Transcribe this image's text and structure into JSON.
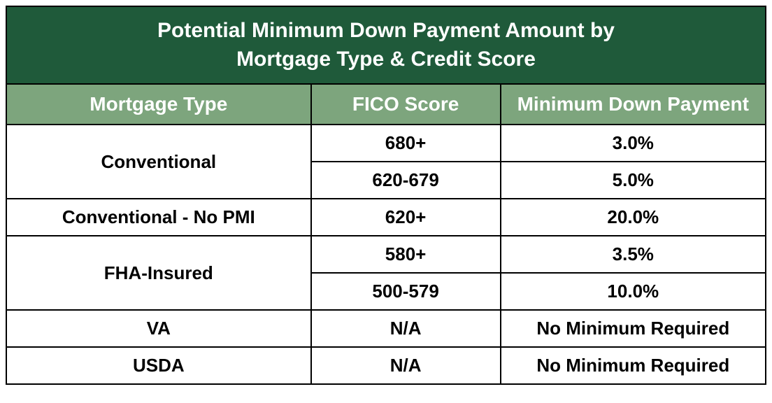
{
  "title": "Potential Minimum Down Payment Amount by\nMortgage Type & Credit Score",
  "columns": [
    "Mortgage Type",
    "FICO Score",
    "Minimum Down Payment"
  ],
  "rows": [
    {
      "type": "Conventional",
      "entries": [
        {
          "score": "680+",
          "down": "3.0%"
        },
        {
          "score": "620-679",
          "down": "5.0%"
        }
      ]
    },
    {
      "type": "Conventional - No PMI",
      "entries": [
        {
          "score": "620+",
          "down": "20.0%"
        }
      ]
    },
    {
      "type": "FHA-Insured",
      "entries": [
        {
          "score": "580+",
          "down": "3.5%"
        },
        {
          "score": "500-579",
          "down": "10.0%"
        }
      ]
    },
    {
      "type": "VA",
      "entries": [
        {
          "score": "N/A",
          "down": "No Minimum Required"
        }
      ]
    },
    {
      "type": "USDA",
      "entries": [
        {
          "score": "N/A",
          "down": "No Minimum Required"
        }
      ]
    }
  ],
  "style": {
    "title_bg": "#1f5a3a",
    "title_color": "#ffffff",
    "title_fontsize": 30,
    "header_bg": "#7da57d",
    "header_color": "#ffffff",
    "header_fontsize": 28,
    "body_fontsize": 26,
    "border_color": "#000000",
    "col_widths_pct": [
      40,
      25,
      35
    ]
  }
}
